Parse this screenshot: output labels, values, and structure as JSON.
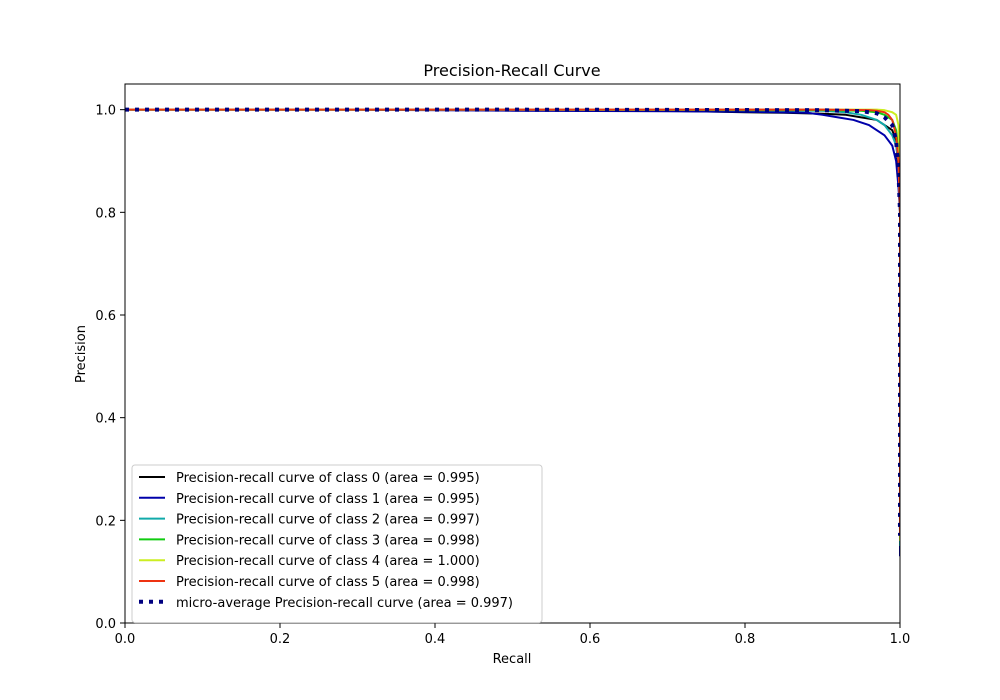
{
  "chart_data": {
    "type": "line",
    "title": "Precision-Recall Curve",
    "xlabel": "Recall",
    "ylabel": "Precision",
    "xlim": [
      0.0,
      1.0
    ],
    "ylim": [
      0.0,
      1.05
    ],
    "xticks": [
      "0.0",
      "0.2",
      "0.4",
      "0.6",
      "0.8",
      "1.0"
    ],
    "yticks": [
      "0.0",
      "0.2",
      "0.4",
      "0.6",
      "0.8",
      "1.0"
    ],
    "grid": false,
    "legend_position": "lower-left",
    "series": [
      {
        "name": "Precision-recall curve of class 0 (area = 0.995)",
        "color": "#000000",
        "style": "solid",
        "x": [
          0.0,
          0.3,
          0.6,
          0.7,
          0.8,
          0.85,
          0.9,
          0.93,
          0.95,
          0.97,
          0.98,
          0.99,
          0.995,
          0.998,
          1.0,
          1.0,
          1.0
        ],
        "y": [
          1.0,
          1.0,
          0.999,
          0.998,
          0.995,
          0.994,
          0.992,
          0.99,
          0.985,
          0.98,
          0.97,
          0.96,
          0.94,
          0.88,
          0.8,
          0.4,
          0.17
        ]
      },
      {
        "name": "Precision-recall curve of class 1 (area = 0.995)",
        "color": "#0000aa",
        "style": "solid",
        "x": [
          0.0,
          0.3,
          0.5,
          0.7,
          0.8,
          0.88,
          0.9,
          0.92,
          0.94,
          0.96,
          0.98,
          0.99,
          0.995,
          0.998,
          1.0,
          1.0,
          1.0
        ],
        "y": [
          1.0,
          1.0,
          0.998,
          0.997,
          0.996,
          0.994,
          0.99,
          0.985,
          0.98,
          0.97,
          0.95,
          0.93,
          0.9,
          0.85,
          0.8,
          0.4,
          0.13
        ]
      },
      {
        "name": "Precision-recall curve of class 2 (area = 0.997)",
        "color": "#11aaaa",
        "style": "solid",
        "x": [
          0.0,
          0.5,
          0.8,
          0.9,
          0.93,
          0.95,
          0.97,
          0.98,
          0.99,
          0.995,
          0.998,
          1.0,
          1.0,
          1.0
        ],
        "y": [
          1.0,
          1.0,
          0.999,
          0.998,
          0.995,
          0.99,
          0.98,
          0.97,
          0.95,
          0.93,
          0.9,
          0.8,
          0.4,
          0.15
        ]
      },
      {
        "name": "Precision-recall curve of class 3 (area = 0.998)",
        "color": "#11cc11",
        "style": "solid",
        "x": [
          0.0,
          0.5,
          0.9,
          0.95,
          0.97,
          0.98,
          0.99,
          0.995,
          0.998,
          1.0,
          1.0,
          1.0
        ],
        "y": [
          1.0,
          1.0,
          0.999,
          0.998,
          0.995,
          0.99,
          0.98,
          0.96,
          0.92,
          0.85,
          0.4,
          0.17
        ]
      },
      {
        "name": "Precision-recall curve of class 4 (area = 1.000)",
        "color": "#ccee22",
        "style": "solid",
        "x": [
          0.0,
          0.5,
          0.9,
          0.97,
          0.98,
          0.99,
          0.995,
          0.998,
          1.0,
          1.0,
          1.0
        ],
        "y": [
          1.0,
          1.0,
          1.0,
          1.0,
          0.999,
          0.995,
          0.99,
          0.97,
          0.9,
          0.4,
          0.16
        ]
      },
      {
        "name": "Precision-recall curve of class 5 (area = 0.998)",
        "color": "#ee3311",
        "style": "solid",
        "x": [
          0.0,
          0.5,
          0.9,
          0.96,
          0.97,
          0.98,
          0.985,
          0.99,
          0.995,
          0.998,
          1.0,
          1.0,
          1.0
        ],
        "y": [
          1.0,
          1.0,
          1.0,
          0.999,
          0.998,
          0.995,
          0.99,
          0.98,
          0.95,
          0.9,
          0.8,
          0.4,
          0.17
        ]
      },
      {
        "name": "micro-average Precision-recall curve (area = 0.997)",
        "color": "#000080",
        "style": "dotted",
        "x": [
          0.0,
          0.5,
          0.9,
          0.95,
          0.97,
          0.98,
          0.99,
          0.995,
          0.998,
          1.0,
          1.0,
          1.0
        ],
        "y": [
          1.0,
          1.0,
          0.999,
          0.997,
          0.993,
          0.985,
          0.97,
          0.94,
          0.88,
          0.8,
          0.4,
          0.17
        ]
      }
    ]
  }
}
